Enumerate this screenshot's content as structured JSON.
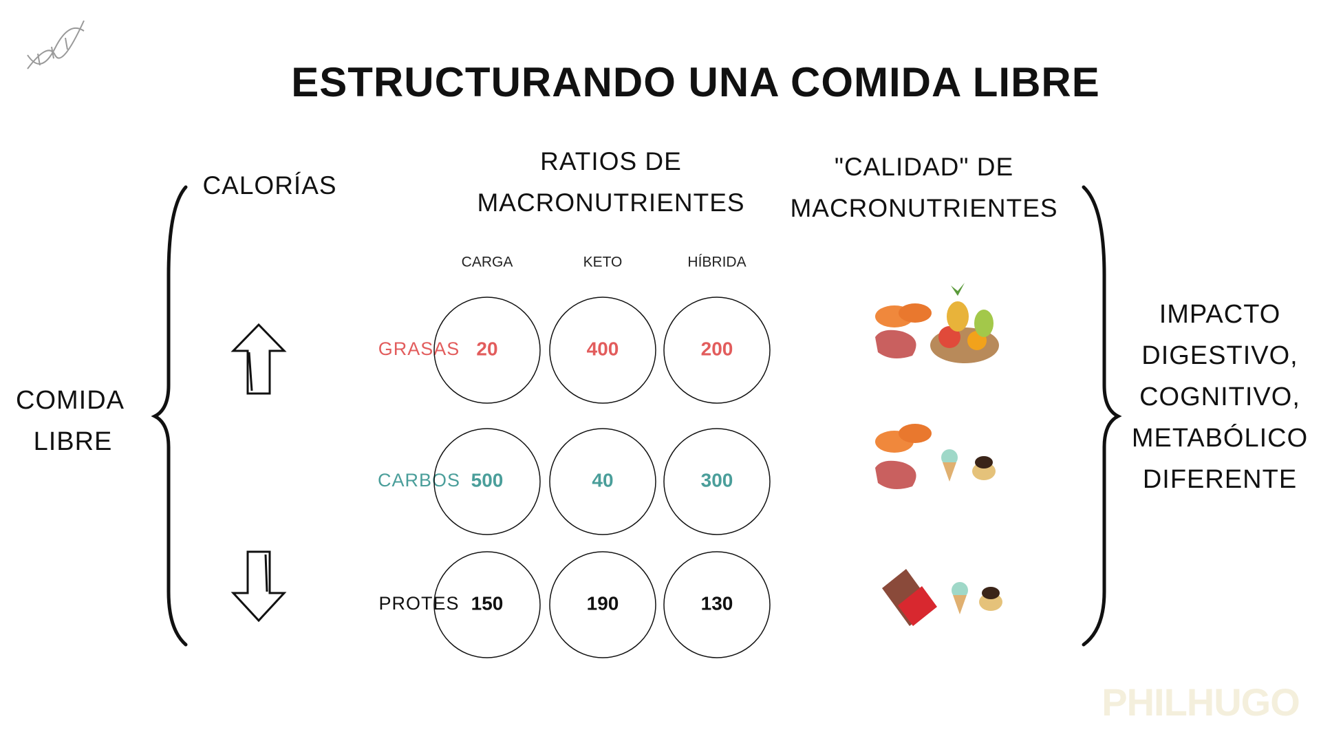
{
  "title": "ESTRUCTURANDO UNA COMIDA LIBRE",
  "left_label": [
    "COMIDA",
    "LIBRE"
  ],
  "calories_header": "CALORÍAS",
  "ratios_header": [
    "RATIOS DE",
    "MACRONUTRIENTES"
  ],
  "quality_header": [
    "\"CALIDAD\" DE",
    "MACRONUTRIENTES"
  ],
  "table": {
    "columns": [
      "CARGA",
      "KETO",
      "HÍBRIDA"
    ],
    "rows": [
      {
        "label": "GRASAS",
        "color": "#e25c5c",
        "values": [
          20,
          400,
          200
        ]
      },
      {
        "label": "CARBOS",
        "color": "#4a9e9a",
        "values": [
          500,
          40,
          300
        ]
      },
      {
        "label": "PROTES",
        "color": "#111111",
        "values": [
          150,
          190,
          130
        ]
      }
    ]
  },
  "impact": [
    "IMPACTO",
    "DIGESTIVO,",
    "COGNITIVO,",
    "METABÓLICO",
    "DIFERENTE"
  ],
  "watermark": "PHILHUGO"
}
